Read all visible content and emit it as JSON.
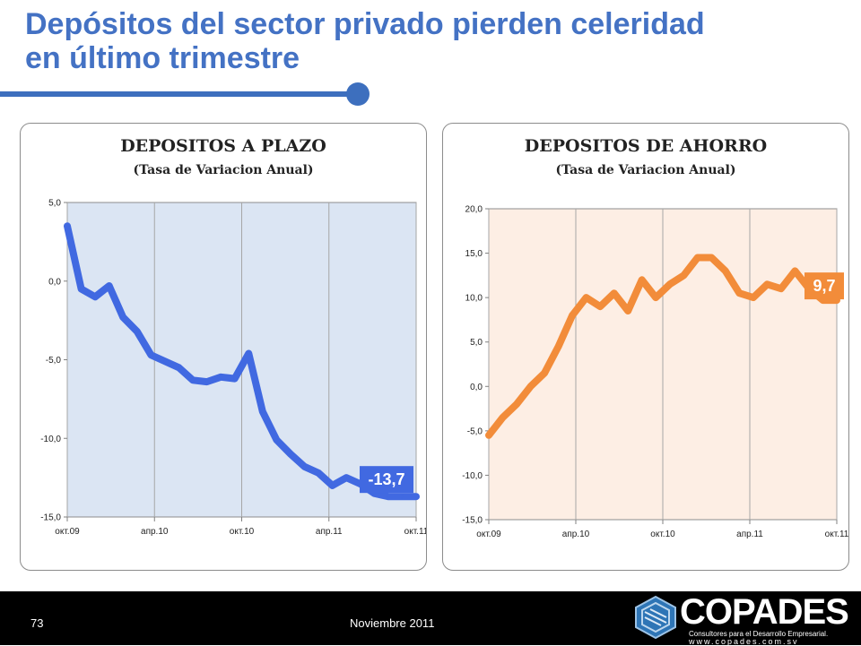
{
  "slide": {
    "title_line1": "Depósitos del sector privado pierden celeridad",
    "title_line2": "en último trimestre",
    "page_number": "73",
    "date": "Noviembre 2011",
    "logo": {
      "name": "COPADES",
      "tagline": "Consultores para el Desarrollo Empresarial.",
      "url": "www.copades.com.sv"
    },
    "colors": {
      "title": "#4472c4",
      "left_line": "#4169e1",
      "right_line": "#f28c3a",
      "left_plot_bg": "#dbe5f3",
      "right_plot_bg": "#fdeee4"
    }
  },
  "chart_data": [
    {
      "type": "line",
      "title": "DEPOSITOS A PLAZO",
      "subtitle": "(Tasa de Variacion Anual)",
      "x": [
        0,
        1,
        2,
        3,
        4,
        5,
        6,
        7,
        8,
        9,
        10,
        11,
        12,
        13,
        14,
        15,
        16,
        17,
        18,
        19,
        20,
        21,
        22,
        23,
        24,
        25
      ],
      "tick_labels": [
        "окт.09",
        "апр.10",
        "окт.10",
        "апр.11",
        "окт.11"
      ],
      "values": [
        3.5,
        -0.5,
        -1.0,
        -0.3,
        -2.3,
        -3.2,
        -4.7,
        -5.1,
        -5.5,
        -6.3,
        -6.4,
        -6.1,
        -6.2,
        -4.6,
        -8.3,
        -10.1,
        -11.0,
        -11.8,
        -12.2,
        -13.0,
        -12.5,
        -12.9,
        -13.5,
        -13.7,
        -13.7,
        -13.7
      ],
      "ylim": [
        -15,
        5
      ],
      "yticks": [
        "5,0",
        "0,0",
        "-5,0",
        "-10,0",
        "-15,0"
      ],
      "last_label": "-13,7",
      "grid": "vertical"
    },
    {
      "type": "line",
      "title": "DEPOSITOS DE AHORRO",
      "subtitle": "(Tasa de Variacion Anual)",
      "x": [
        0,
        1,
        2,
        3,
        4,
        5,
        6,
        7,
        8,
        9,
        10,
        11,
        12,
        13,
        14,
        15,
        16,
        17,
        18,
        19,
        20,
        21,
        22,
        23,
        24,
        25
      ],
      "tick_labels": [
        "окт.09",
        "апр.10",
        "окт.10",
        "апр.11",
        "окт.11"
      ],
      "values": [
        -5.5,
        -3.5,
        -2.0,
        0.0,
        1.5,
        4.5,
        8.0,
        10.0,
        9.0,
        10.5,
        8.5,
        12.0,
        10.0,
        11.5,
        12.5,
        14.5,
        14.5,
        13.0,
        10.5,
        10.0,
        11.5,
        11.0,
        13.0,
        11.0,
        9.7,
        9.7
      ],
      "ylim": [
        -15,
        20
      ],
      "yticks": [
        "20,0",
        "15,0",
        "10,0",
        "5,0",
        "0,0",
        "-5,0",
        "-10,0",
        "-15,0"
      ],
      "last_label": "9,7",
      "grid": "vertical"
    }
  ]
}
